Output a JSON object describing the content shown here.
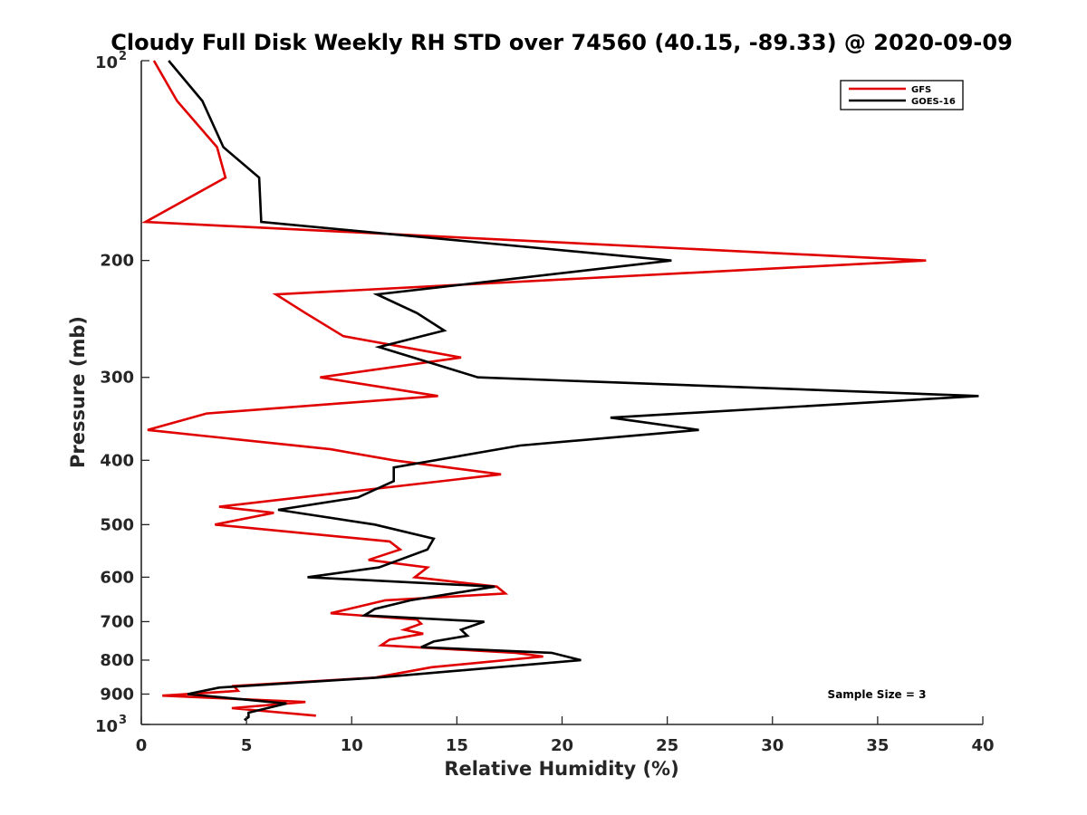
{
  "chart_data": {
    "type": "line",
    "title": "Cloudy Full Disk Weekly RH STD over 74560 (40.15, -89.33) @ 2020-09-09",
    "xlabel": "Relative Humidity (%)",
    "ylabel": "Pressure (mb)",
    "xlim": [
      0,
      40
    ],
    "ylim": [
      100,
      1000
    ],
    "y_scale": "log",
    "y_reversed": true,
    "x_ticks": [
      0,
      5,
      10,
      15,
      20,
      25,
      30,
      35,
      40
    ],
    "x_tick_labels": [
      "0",
      "5",
      "10",
      "15",
      "20",
      "25",
      "30",
      "35",
      "40"
    ],
    "y_ticks": [
      100,
      200,
      300,
      400,
      500,
      600,
      700,
      800,
      900,
      1000
    ],
    "y_tick_labels": [
      {
        "base": "10",
        "exp": "2"
      },
      {
        "base": "200"
      },
      {
        "base": "300"
      },
      {
        "base": "400"
      },
      {
        "base": "500"
      },
      {
        "base": "600"
      },
      {
        "base": "700"
      },
      {
        "base": "800"
      },
      {
        "base": "900"
      },
      {
        "base": "10",
        "exp": "3"
      }
    ],
    "grid": false,
    "legend": "top-right",
    "annotation": "Sample Size = 3",
    "series": [
      {
        "name": "GFS",
        "color": "#e00000",
        "points": [
          [
            0.6,
            100
          ],
          [
            1.7,
            115
          ],
          [
            3.6,
            135
          ],
          [
            4.0,
            150
          ],
          [
            0.2,
            175
          ],
          [
            37.3,
            200
          ],
          [
            6.4,
            225
          ],
          [
            7.8,
            240
          ],
          [
            9.6,
            260
          ],
          [
            15.2,
            280
          ],
          [
            8.5,
            300
          ],
          [
            14.1,
            320
          ],
          [
            3.1,
            340
          ],
          [
            0.3,
            360
          ],
          [
            9.0,
            385
          ],
          [
            12.0,
            400
          ],
          [
            17.1,
            420
          ],
          [
            3.7,
            470
          ],
          [
            6.3,
            480
          ],
          [
            3.5,
            500
          ],
          [
            11.8,
            530
          ],
          [
            12.3,
            545
          ],
          [
            10.8,
            565
          ],
          [
            13.6,
            580
          ],
          [
            13.0,
            600
          ],
          [
            16.9,
            620
          ],
          [
            17.3,
            635
          ],
          [
            11.6,
            650
          ],
          [
            9.0,
            680
          ],
          [
            13.1,
            695
          ],
          [
            13.3,
            705
          ],
          [
            12.5,
            720
          ],
          [
            13.4,
            730
          ],
          [
            11.8,
            745
          ],
          [
            11.4,
            760
          ],
          [
            17.8,
            780
          ],
          [
            19.1,
            790
          ],
          [
            13.8,
            820
          ],
          [
            11.1,
            850
          ],
          [
            4.4,
            875
          ],
          [
            4.6,
            890
          ],
          [
            1.0,
            905
          ],
          [
            7.8,
            925
          ],
          [
            4.3,
            945
          ],
          [
            8.3,
            970
          ]
        ]
      },
      {
        "name": "GOES-16",
        "color": "#000000",
        "points": [
          [
            1.3,
            100
          ],
          [
            2.9,
            115
          ],
          [
            3.9,
            135
          ],
          [
            5.6,
            150
          ],
          [
            5.7,
            175
          ],
          [
            25.2,
            200
          ],
          [
            11.2,
            225
          ],
          [
            13.1,
            240
          ],
          [
            14.4,
            255
          ],
          [
            11.3,
            270
          ],
          [
            16.0,
            300
          ],
          [
            39.8,
            320
          ],
          [
            22.3,
            345
          ],
          [
            26.5,
            360
          ],
          [
            18.0,
            380
          ],
          [
            12.0,
            410
          ],
          [
            12.0,
            430
          ],
          [
            10.3,
            455
          ],
          [
            6.5,
            475
          ],
          [
            11.1,
            500
          ],
          [
            13.9,
            525
          ],
          [
            13.6,
            545
          ],
          [
            11.3,
            580
          ],
          [
            7.9,
            600
          ],
          [
            16.8,
            620
          ],
          [
            12.8,
            650
          ],
          [
            11.1,
            670
          ],
          [
            10.6,
            685
          ],
          [
            16.3,
            700
          ],
          [
            15.2,
            720
          ],
          [
            15.5,
            735
          ],
          [
            13.9,
            750
          ],
          [
            13.3,
            765
          ],
          [
            19.5,
            780
          ],
          [
            20.9,
            800
          ],
          [
            11.2,
            850
          ],
          [
            3.7,
            880
          ],
          [
            2.2,
            900
          ],
          [
            6.9,
            930
          ],
          [
            5.1,
            960
          ],
          [
            5.1,
            975
          ],
          [
            4.9,
            985
          ]
        ]
      }
    ]
  }
}
